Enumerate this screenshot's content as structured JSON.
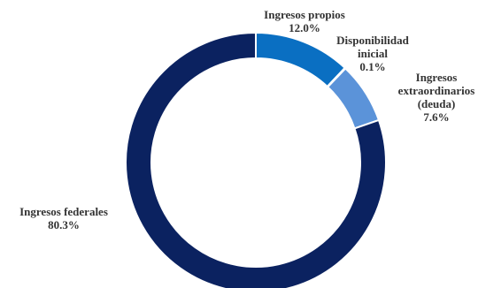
{
  "chart_data": {
    "type": "pie",
    "donut": true,
    "slices": [
      {
        "name": "Ingresos propios",
        "value": 12.0,
        "label_lines": [
          "Ingresos propios",
          "12.0%"
        ],
        "color": "#0a6fc2"
      },
      {
        "name": "Disponibilidad inicial",
        "value": 0.1,
        "label_lines": [
          "Disponibilidad",
          "inicial",
          "0.1%"
        ],
        "color": "#1f7ed1"
      },
      {
        "name": "Ingresos extraordinarios (deuda)",
        "value": 7.6,
        "label_lines": [
          "Ingresos",
          "extraordinarios",
          "(deuda)",
          "7.6%"
        ],
        "color": "#5b93d9"
      },
      {
        "name": "Ingresos federales",
        "value": 80.3,
        "label_lines": [
          "Ingresos federales",
          "80.3%"
        ],
        "color": "#0b2260"
      }
    ],
    "legend": "none"
  }
}
